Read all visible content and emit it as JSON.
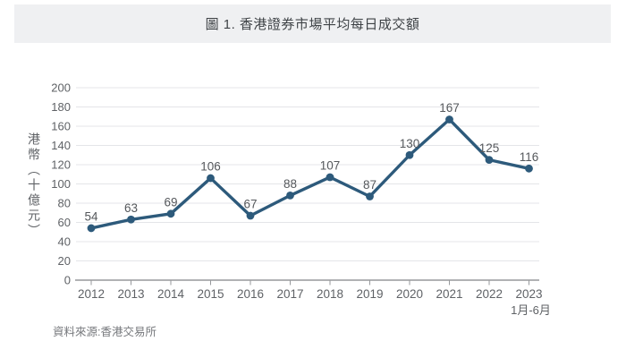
{
  "colors": {
    "header_bg": "#eff0f2",
    "line": "#2d5a7b",
    "gridline": "#e4e5e8",
    "axis": "#97999c",
    "tick_text": "#5f6266",
    "data_label_text": "#55585c"
  },
  "chart_data": {
    "type": "line",
    "title": "圖 1. 香港證券市場平均每日成交額",
    "categories": [
      "2012",
      "2013",
      "2014",
      "2015",
      "2016",
      "2017",
      "2018",
      "2019",
      "2020",
      "2021",
      "2022",
      "2023"
    ],
    "x_sub_label": "1月-6月",
    "values": [
      54,
      63,
      69,
      106,
      67,
      88,
      107,
      87,
      130,
      167,
      125,
      116
    ],
    "ylabel": "港幣（十億元）",
    "ylim": [
      0,
      200
    ],
    "ytick_step": 20,
    "grid": true,
    "legend": "none",
    "source": "資料來源:香港交易所"
  }
}
